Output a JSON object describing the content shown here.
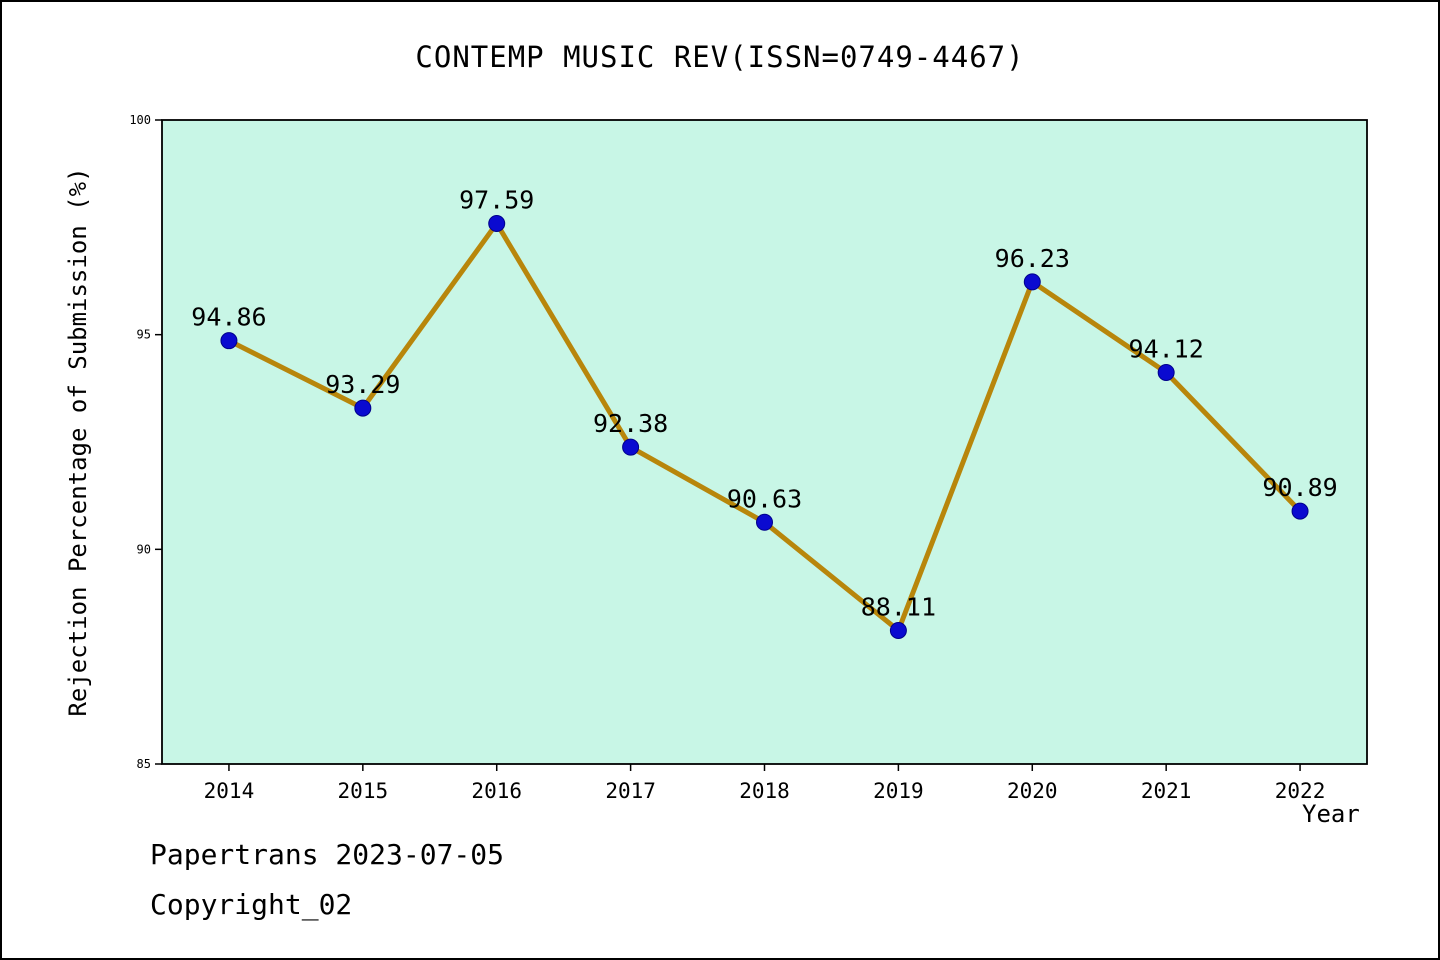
{
  "footer": {
    "line1": "Papertrans 2023-07-05",
    "line2": "Copyright_02"
  },
  "chart_data": {
    "type": "line",
    "title": "CONTEMP MUSIC REV(ISSN=0749-4467)",
    "xlabel": "Year",
    "ylabel": "Rejection Percentage of Submission (%)",
    "categories": [
      2014,
      2015,
      2016,
      2017,
      2018,
      2019,
      2020,
      2021,
      2022
    ],
    "series": [
      {
        "name": "Rejection Percentage of Submission (%)",
        "values": [
          94.86,
          93.29,
          97.59,
          92.38,
          90.63,
          88.11,
          96.23,
          94.12,
          90.89
        ]
      }
    ],
    "data_labels": [
      "94.86",
      "93.29",
      "97.59",
      "92.38",
      "90.63",
      "88.11",
      "96.23",
      "94.12",
      "90.89"
    ],
    "ylim": [
      85,
      100
    ],
    "yticks": [
      85,
      90,
      95,
      100
    ],
    "grid": false,
    "legend": "none",
    "colors": {
      "line": "#b8860b",
      "marker": "#0a0ad0",
      "marker_edge": "#00008b",
      "plot_bg": "#c8f6e6",
      "frame": "#000000",
      "text": "#000000"
    }
  }
}
